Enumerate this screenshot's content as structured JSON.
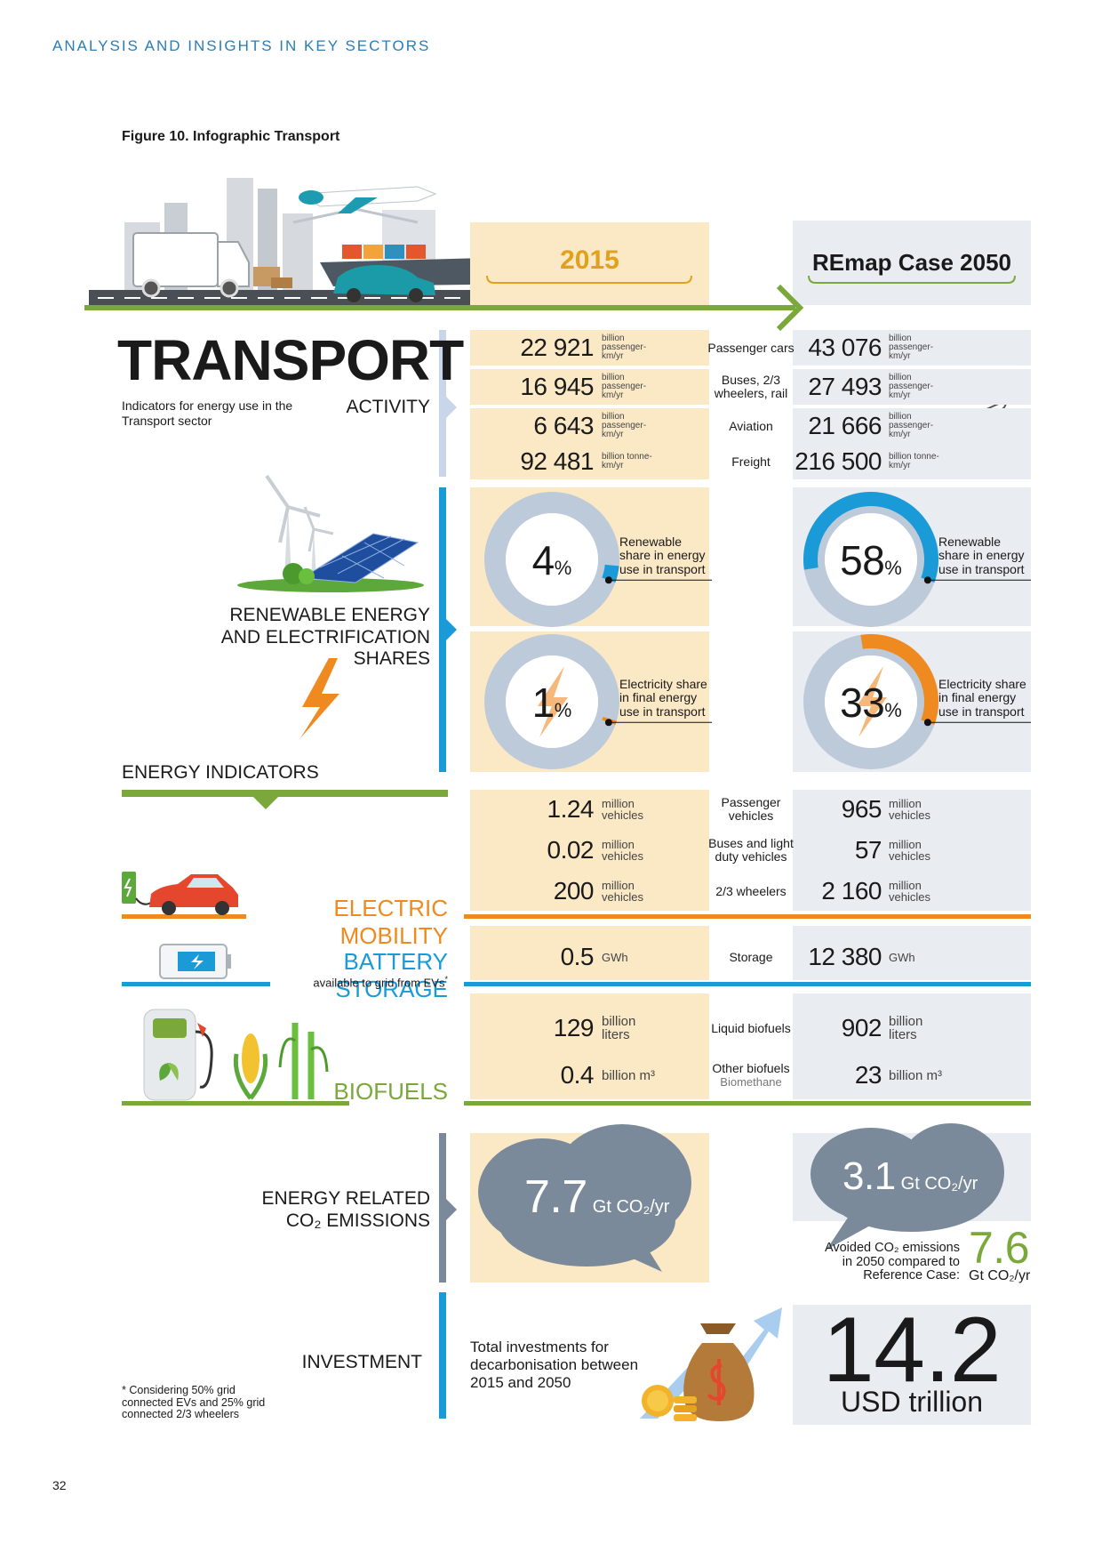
{
  "header": "ANALYSIS AND INSIGHTS IN KEY SECTORS",
  "figure_title": "Figure 10. Infographic Transport",
  "page_number": "32",
  "columns": [
    "2015",
    "REmap Case 2050"
  ],
  "sector": {
    "title": "TRANSPORT",
    "subtitle": "Indicators for energy use in the Transport sector"
  },
  "activity": {
    "label": "ACTIVITY",
    "rows": [
      {
        "label": "Passenger cars",
        "value_2015": "22 921",
        "value_2050": "43 076",
        "unit": "billion passenger-km/yr"
      },
      {
        "label": "Buses, 2/3 wheelers, rail",
        "value_2015": "16 945",
        "value_2050": "27 493",
        "unit": "billion passenger-km/yr"
      },
      {
        "label": "Aviation",
        "value_2015": "6 643",
        "value_2050": "21 666",
        "unit": "billion passenger-km/yr"
      },
      {
        "label": "Freight",
        "value_2015": "92 481",
        "value_2050": "216 500",
        "unit": "billion tonne-km/yr"
      }
    ]
  },
  "shares": {
    "label_lines": [
      "RENEWABLE ENERGY",
      "AND ELECTRIFICATION SHARES"
    ],
    "unit": "%",
    "items": [
      {
        "label": "Renewable share in energy use in transport",
        "value_2015": 4,
        "value_2050": 58
      },
      {
        "label": "Electricity share in final energy use in transport",
        "value_2015": 1,
        "value_2050": 33
      }
    ]
  },
  "energy_indicators": "ENERGY INDICATORS",
  "electric_mobility": {
    "label": "ELECTRIC MOBILITY",
    "rows": [
      {
        "label": "Passenger vehicles",
        "value_2015": "1.24",
        "value_2050": "965",
        "unit": "million vehicles"
      },
      {
        "label": "Buses and light duty vehicles",
        "value_2015": "0.02",
        "value_2050": "57",
        "unit": "million vehicles"
      },
      {
        "label": "2/3 wheelers",
        "value_2015": "200",
        "value_2050": "2 160",
        "unit": "million vehicles"
      }
    ]
  },
  "battery_storage": {
    "label": "BATTERY STORAGE",
    "note": "available to grid from EVs",
    "note_marker": "*",
    "rows": [
      {
        "label": "Storage",
        "value_2015": "0.5",
        "value_2050": "12 380",
        "unit": "GWh"
      }
    ]
  },
  "biofuels": {
    "label": "BIOFUELS",
    "rows": [
      {
        "label": "Liquid biofuels",
        "value_2015": "129",
        "value_2050": "902",
        "unit": "billion liters"
      },
      {
        "label": "Other biofuels",
        "sublabel": "Biomethane",
        "value_2015": "0.4",
        "value_2050": "23",
        "unit": "billion m³"
      }
    ]
  },
  "emissions": {
    "label_lines": [
      "ENERGY RELATED",
      "CO₂ EMISSIONS"
    ],
    "value_2015": "7.7",
    "value_2050": "3.1",
    "unit": "Gt CO₂/yr",
    "avoided": {
      "text": "Avoided CO₂ emissions in 2050 compared to Reference Case:",
      "value": "7.6",
      "unit": "Gt CO₂/yr"
    }
  },
  "investment": {
    "label": "INVESTMENT",
    "text": "Total investments for decarbonisation between 2015 and 2050",
    "value": "14.2",
    "unit": "USD trillion"
  },
  "footnote": "* Considering 50% grid connected EVs and 25% grid connected 2/3 wheelers"
}
